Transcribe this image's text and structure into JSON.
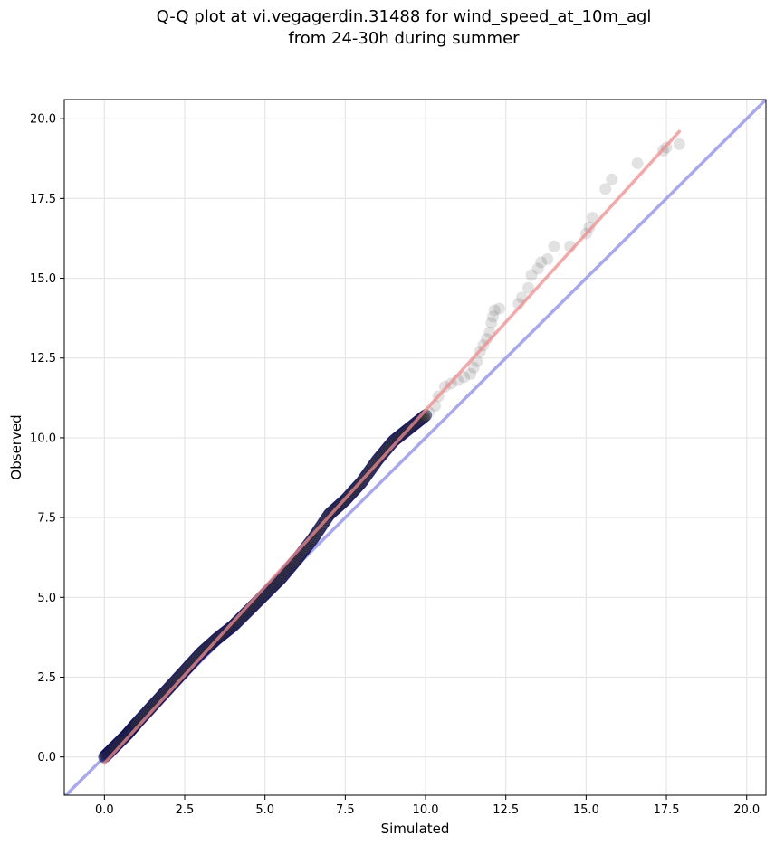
{
  "title": {
    "line1": "Q-Q plot at vi.vegagerdin.31488 for wind_speed_at_10m_agl",
    "line2": "from 24-30h during summer"
  },
  "colors": {
    "points_fill": "#333333",
    "points_edge_core": "#000066",
    "fit_line": "#f28b8b",
    "identity_line": "#9999ee",
    "grid": "#e6e6e6"
  },
  "chart_data": {
    "type": "scatter",
    "xlabel": "Simulated",
    "ylabel": "Observed",
    "xlim": [
      -1.25,
      20.6
    ],
    "ylim": [
      -1.2,
      20.6
    ],
    "xticks": [
      0.0,
      2.5,
      5.0,
      7.5,
      10.0,
      12.5,
      15.0,
      17.5,
      20.0
    ],
    "yticks": [
      0.0,
      2.5,
      5.0,
      7.5,
      10.0,
      12.5,
      15.0,
      17.5,
      20.0
    ],
    "xtick_labels": [
      "0.0",
      "2.5",
      "5.0",
      "7.5",
      "10.0",
      "12.5",
      "15.0",
      "17.5",
      "20.0"
    ],
    "ytick_labels": [
      "0.0",
      "2.5",
      "5.0",
      "7.5",
      "10.0",
      "12.5",
      "15.0",
      "17.5",
      "20.0"
    ],
    "grid": true,
    "quantile_curve": [
      [
        0.0,
        0.0
      ],
      [
        0.3,
        0.3
      ],
      [
        0.7,
        0.7
      ],
      [
        1.0,
        1.05
      ],
      [
        1.5,
        1.6
      ],
      [
        2.0,
        2.15
      ],
      [
        2.5,
        2.7
      ],
      [
        3.0,
        3.25
      ],
      [
        3.5,
        3.7
      ],
      [
        4.0,
        4.1
      ],
      [
        4.5,
        4.6
      ],
      [
        5.0,
        5.1
      ],
      [
        5.5,
        5.6
      ],
      [
        6.0,
        6.2
      ],
      [
        6.5,
        6.85
      ],
      [
        7.0,
        7.6
      ],
      [
        7.5,
        8.05
      ],
      [
        8.0,
        8.6
      ],
      [
        8.5,
        9.3
      ],
      [
        9.0,
        9.9
      ],
      [
        9.5,
        10.3
      ],
      [
        10.0,
        10.7
      ]
    ],
    "tail_points": [
      [
        10.1,
        10.8
      ],
      [
        10.3,
        11.0
      ],
      [
        10.4,
        11.3
      ],
      [
        10.6,
        11.6
      ],
      [
        10.8,
        11.7
      ],
      [
        11.0,
        11.8
      ],
      [
        11.2,
        11.9
      ],
      [
        11.4,
        12.0
      ],
      [
        11.5,
        12.2
      ],
      [
        11.6,
        12.4
      ],
      [
        11.7,
        12.7
      ],
      [
        11.8,
        12.9
      ],
      [
        11.9,
        13.1
      ],
      [
        12.0,
        13.3
      ],
      [
        12.05,
        13.6
      ],
      [
        12.1,
        13.8
      ],
      [
        12.15,
        14.0
      ],
      [
        12.3,
        14.05
      ],
      [
        12.9,
        14.2
      ],
      [
        13.0,
        14.4
      ],
      [
        13.2,
        14.7
      ],
      [
        13.3,
        15.1
      ],
      [
        13.5,
        15.3
      ],
      [
        13.6,
        15.5
      ],
      [
        13.8,
        15.6
      ],
      [
        14.0,
        16.0
      ],
      [
        14.5,
        16.0
      ],
      [
        15.0,
        16.4
      ],
      [
        15.1,
        16.6
      ],
      [
        15.2,
        16.9
      ],
      [
        15.6,
        17.8
      ],
      [
        15.8,
        18.1
      ],
      [
        16.6,
        18.6
      ],
      [
        17.4,
        19.0
      ],
      [
        17.5,
        19.1
      ],
      [
        17.9,
        19.2
      ]
    ],
    "fit_line": [
      [
        0.0,
        -0.2
      ],
      [
        17.9,
        19.6
      ]
    ],
    "identity_line": [
      [
        -1.25,
        -1.25
      ],
      [
        20.6,
        20.6
      ]
    ]
  }
}
